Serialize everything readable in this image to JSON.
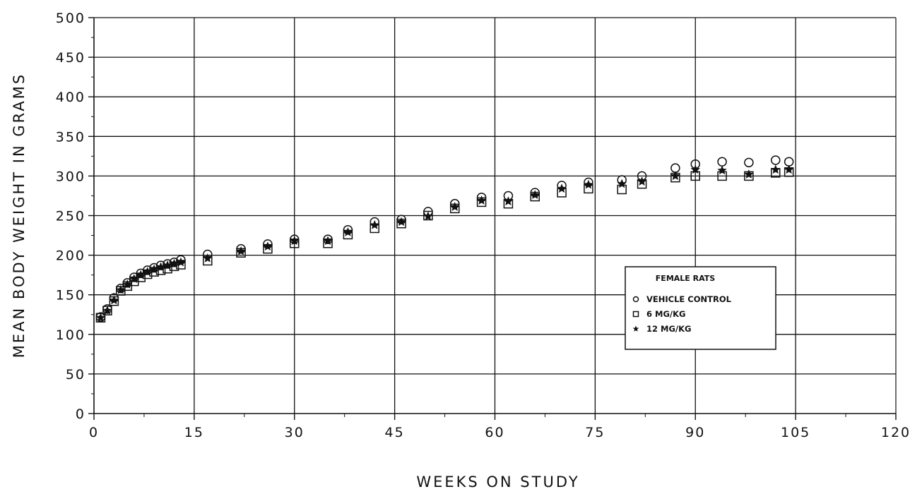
{
  "chart_data": {
    "type": "scatter",
    "xlabel": "WEEKS ON STUDY",
    "ylabel": "MEAN BODY WEIGHT IN GRAMS",
    "xlim": [
      0,
      120
    ],
    "ylim": [
      0,
      500
    ],
    "xticks": [
      0,
      15,
      30,
      45,
      60,
      75,
      90,
      105,
      120
    ],
    "yticks": [
      0,
      50,
      100,
      150,
      200,
      250,
      300,
      350,
      400,
      450,
      500
    ],
    "grid": true,
    "legend": {
      "title": "FEMALE RATS",
      "position": "lower-right"
    },
    "series": [
      {
        "name": "VEHICLE CONTROL",
        "marker": "circle",
        "x": [
          1,
          2,
          3,
          4,
          5,
          6,
          7,
          8,
          9,
          10,
          11,
          12,
          13,
          17,
          22,
          26,
          30,
          35,
          38,
          42,
          46,
          50,
          54,
          58,
          62,
          66,
          70,
          74,
          79,
          82,
          87,
          90,
          94,
          98,
          102,
          104
        ],
        "y": [
          122,
          132,
          146,
          158,
          165,
          172,
          177,
          181,
          184,
          187,
          189,
          191,
          194,
          201,
          208,
          214,
          220,
          220,
          232,
          242,
          245,
          255,
          265,
          273,
          275,
          279,
          288,
          292,
          295,
          300,
          310,
          315,
          318,
          317,
          320,
          318
        ]
      },
      {
        "name": "6 MG/KG",
        "marker": "square",
        "x": [
          1,
          2,
          3,
          4,
          5,
          6,
          7,
          8,
          9,
          10,
          11,
          12,
          13,
          17,
          22,
          26,
          30,
          35,
          38,
          42,
          46,
          50,
          54,
          58,
          62,
          66,
          70,
          74,
          79,
          82,
          87,
          90,
          94,
          98,
          102,
          104
        ],
        "y": [
          121,
          130,
          142,
          155,
          161,
          167,
          172,
          176,
          179,
          181,
          183,
          186,
          188,
          193,
          203,
          208,
          215,
          215,
          226,
          234,
          240,
          250,
          259,
          267,
          265,
          274,
          279,
          284,
          283,
          290,
          298,
          300,
          300,
          300,
          304,
          305
        ]
      },
      {
        "name": "12 MG/KG",
        "marker": "star",
        "x": [
          1,
          2,
          3,
          4,
          5,
          6,
          7,
          8,
          9,
          10,
          11,
          12,
          13,
          17,
          22,
          26,
          30,
          35,
          38,
          42,
          46,
          50,
          54,
          58,
          62,
          66,
          70,
          74,
          79,
          82,
          87,
          90,
          94,
          98,
          102,
          104
        ],
        "y": [
          121,
          130,
          143,
          156,
          163,
          170,
          175,
          179,
          182,
          185,
          187,
          189,
          191,
          196,
          205,
          211,
          218,
          218,
          229,
          238,
          242,
          249,
          261,
          269,
          268,
          276,
          284,
          289,
          290,
          293,
          300,
          308,
          307,
          302,
          308,
          308
        ]
      }
    ]
  }
}
